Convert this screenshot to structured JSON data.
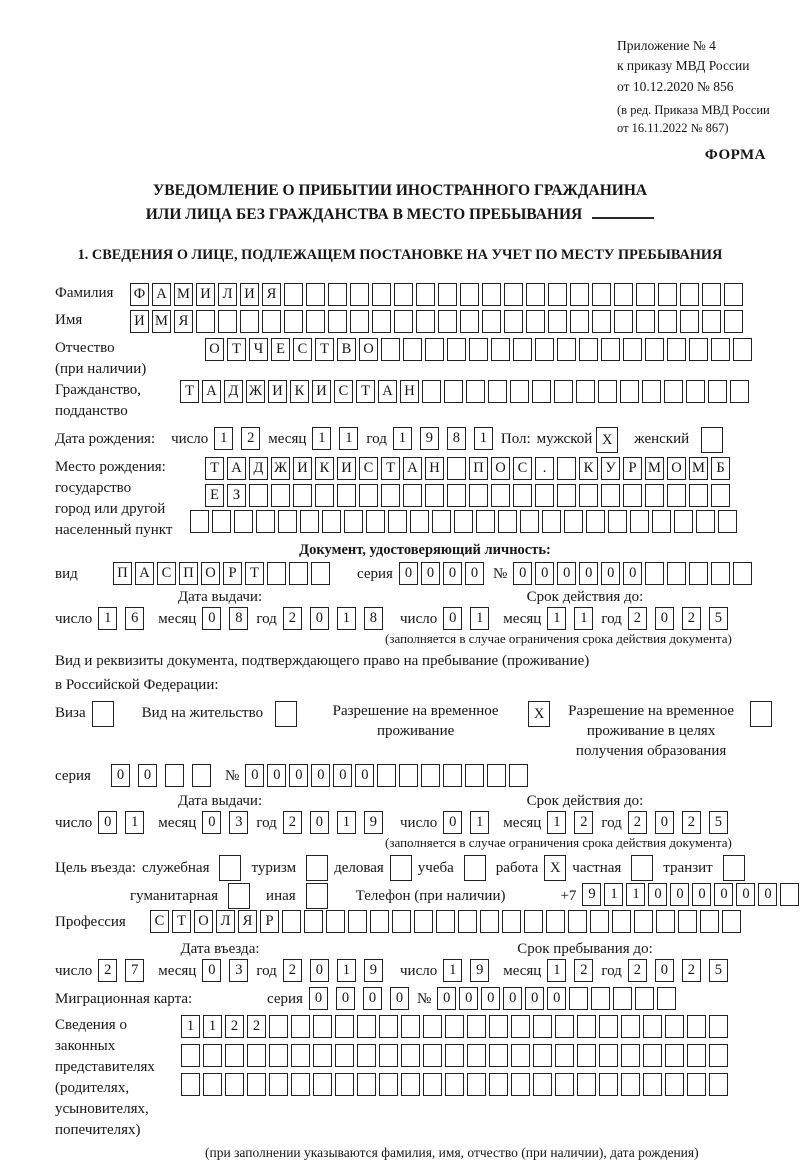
{
  "colors": {
    "ink": "#1b1b1b",
    "page_bg": "#ffffff"
  },
  "meta": {
    "appendix_lines": [
      "Приложение № 4",
      "к приказу МВД России",
      "от 10.12.2020 № 856"
    ],
    "amendment_lines": [
      "(в ред. Приказа МВД России",
      "от 16.11.2022 № 867)"
    ],
    "form_label": "ФОРМА"
  },
  "title": {
    "line1": "УВЕДОМЛЕНИЕ О ПРИБЫТИИ ИНОСТРАННОГО ГРАЖДАНИНА",
    "line2": "ИЛИ ЛИЦА БЕЗ ГРАЖДАНСТВА В МЕСТО ПРЕБЫВАНИЯ"
  },
  "section1_heading": "1. СВЕДЕНИЯ О ЛИЦЕ, ПОДЛЕЖАЩЕМ ПОСТАНОВКЕ НА УЧЕТ ПО МЕСТУ ПРЕБЫВАНИЯ",
  "labels": {
    "day": "число",
    "month": "месяц",
    "year": "год",
    "series": "серия",
    "number": "№"
  },
  "fields": {
    "surname": {
      "label": "Фамилия",
      "cells": {
        "v": "ФАМИЛИЯ",
        "n": 28
      }
    },
    "name": {
      "label": "Имя",
      "cells": {
        "v": "ИМЯ",
        "n": 28
      }
    },
    "patronymic": {
      "label1": "Отчество",
      "label2": "(при наличии)",
      "cells": {
        "v": "ОТЧЕСТВО",
        "n": 25
      }
    },
    "citizenship": {
      "label1": "Гражданство,",
      "label2": "подданство",
      "cells": {
        "v": "ТАДЖИКИСТАН",
        "n": 26
      }
    },
    "birth_date": {
      "label": "Дата рождения:",
      "day": {
        "v": "12",
        "n": 2
      },
      "month": {
        "v": "11",
        "n": 2
      },
      "year": {
        "v": "1981",
        "n": 4
      },
      "sex_label": "Пол:",
      "male_label": "мужской",
      "male_box": {
        "v": "X",
        "n": 1
      },
      "female_label": "женский",
      "female_box": {
        "v": "",
        "n": 1
      }
    },
    "birth_place": {
      "labels": [
        "Место рождения:",
        "государство",
        "город или другой",
        "населенный пункт"
      ],
      "row1": {
        "v": "ТАДЖИКИСТАН ПОС. КУРМОМБ",
        "n": 24
      },
      "row2": {
        "v": "ЕЗ",
        "n": 24
      },
      "row3": {
        "v": "",
        "n": 25
      }
    }
  },
  "identity_doc": {
    "heading": "Документ, удостоверяющий личность:",
    "kind_label": "вид",
    "kind": {
      "v": "ПАСПОРТ",
      "n": 10
    },
    "series": {
      "v": "0000",
      "n": 4
    },
    "number": {
      "v": "000000",
      "n": 11
    },
    "issue_label": "Дата выдачи:",
    "expiry_label": "Срок действия до:",
    "issue": {
      "day": {
        "v": "16",
        "n": 2
      },
      "month": {
        "v": "08",
        "n": 2
      },
      "year": {
        "v": "2018",
        "n": 4
      }
    },
    "expiry": {
      "day": {
        "v": "01",
        "n": 2
      },
      "month": {
        "v": "11",
        "n": 2
      },
      "year": {
        "v": "2025",
        "n": 4
      }
    },
    "validity_note": "(заполняется в случае ограничения срока действия документа)"
  },
  "residence_doc": {
    "line1": "Вид и реквизиты документа, подтверждающего право на пребывание (проживание)",
    "line2": "в Российской Федерации:",
    "opt1": {
      "label": "Виза",
      "box": {
        "v": "",
        "n": 1
      }
    },
    "opt2": {
      "label": "Вид на жительство",
      "box": {
        "v": "",
        "n": 1
      }
    },
    "opt3": {
      "lines": [
        "Разрешение на временное",
        "проживание"
      ],
      "box": {
        "v": "X",
        "n": 1
      }
    },
    "opt4": {
      "lines": [
        "Разрешение на временное",
        "проживание в целях",
        "получения образования"
      ],
      "box": {
        "v": "",
        "n": 1
      }
    },
    "series": {
      "v": "00",
      "n": 4
    },
    "number": {
      "v": "000000",
      "n": 13
    },
    "issue_label": "Дата выдачи:",
    "expiry_label": "Срок действия до:",
    "issue": {
      "day": {
        "v": "01",
        "n": 2
      },
      "month": {
        "v": "03",
        "n": 2
      },
      "year": {
        "v": "2019",
        "n": 4
      }
    },
    "expiry": {
      "day": {
        "v": "01",
        "n": 2
      },
      "month": {
        "v": "12",
        "n": 2
      },
      "year": {
        "v": "2025",
        "n": 4
      }
    },
    "validity_note": "(заполняется в случае ограничения срока действия документа)"
  },
  "visit_purpose": {
    "label": "Цель въезда:",
    "items": [
      {
        "label": "служебная",
        "box": {
          "v": "",
          "n": 1
        }
      },
      {
        "label": "туризм",
        "box": {
          "v": "",
          "n": 1
        }
      },
      {
        "label": "деловая",
        "box": {
          "v": "",
          "n": 1
        }
      },
      {
        "label": "учеба",
        "box": {
          "v": "",
          "n": 1
        }
      },
      {
        "label": "работа",
        "box": {
          "v": "X",
          "n": 1
        }
      },
      {
        "label": "частная",
        "box": {
          "v": "",
          "n": 1
        }
      },
      {
        "label": "транзит",
        "box": {
          "v": "",
          "n": 1
        }
      }
    ],
    "items2": [
      {
        "label": "гуманитарная",
        "box": {
          "v": "",
          "n": 1
        }
      },
      {
        "label": "иная",
        "box": {
          "v": "",
          "n": 1
        }
      }
    ],
    "phone_label": "Телефон (при наличии)",
    "phone_prefix": "+7",
    "phone": {
      "v": "911000000",
      "n": 10
    }
  },
  "profession": {
    "label": "Профессия",
    "cells": {
      "v": "СТОЛЯР",
      "n": 27
    }
  },
  "entry": {
    "entry_label": "Дата въезда:",
    "stay_label": "Срок пребывания до:",
    "entry_date": {
      "day": {
        "v": "27",
        "n": 2
      },
      "month": {
        "v": "03",
        "n": 2
      },
      "year": {
        "v": "2019",
        "n": 4
      }
    },
    "stay_until": {
      "day": {
        "v": "19",
        "n": 2
      },
      "month": {
        "v": "12",
        "n": 2
      },
      "year": {
        "v": "2025",
        "n": 4
      }
    }
  },
  "migration_card": {
    "label": "Миграционная карта:",
    "series": {
      "v": "0000",
      "n": 4
    },
    "number": {
      "v": "000000",
      "n": 11
    }
  },
  "representatives": {
    "labels": [
      "Сведения о",
      "законных",
      "представителях",
      "(родителях,",
      "усыновителях,",
      "попечителях)"
    ],
    "row1": {
      "v": "1122",
      "n": 25
    },
    "row2": {
      "v": "",
      "n": 25
    },
    "row3": {
      "v": "",
      "n": 25
    },
    "note": "(при заполнении указываются фамилия, имя, отчество (при наличии), дата рождения)"
  }
}
